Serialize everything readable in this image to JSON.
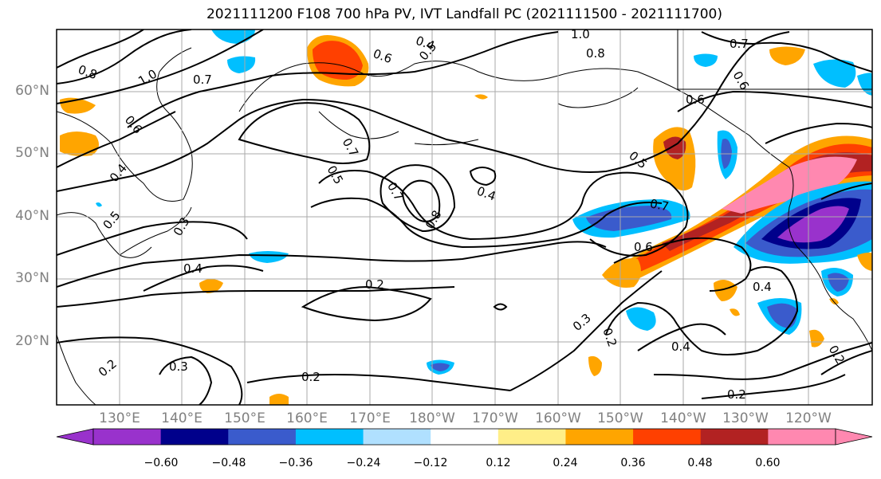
{
  "title": "2021111200 F108 700 hPa PV, IVT Landfall PC (2021111500 - 2021111700)",
  "map": {
    "lat_labels": [
      "60°N",
      "50°N",
      "40°N",
      "30°N",
      "20°N"
    ],
    "lon_labels": [
      "130°E",
      "140°E",
      "150°E",
      "160°E",
      "170°E",
      "180°W",
      "170°W",
      "160°W",
      "150°W",
      "140°W",
      "130°W",
      "120°W"
    ],
    "contour_labels": [
      {
        "text": "0.8"
      },
      {
        "text": "1.0"
      },
      {
        "text": "0.7"
      },
      {
        "text": "0.6"
      },
      {
        "text": "0.4"
      },
      {
        "text": "0.5"
      },
      {
        "text": "1.0"
      },
      {
        "text": "0.8"
      },
      {
        "text": "0.7"
      },
      {
        "text": "0.6"
      },
      {
        "text": "0.6"
      },
      {
        "text": "0.4"
      },
      {
        "text": "0.5"
      },
      {
        "text": "0.3"
      },
      {
        "text": "0.4"
      },
      {
        "text": "0.7"
      },
      {
        "text": "0.5"
      },
      {
        "text": "0.7"
      },
      {
        "text": "0.8"
      },
      {
        "text": "0.4"
      },
      {
        "text": "0.2"
      },
      {
        "text": "0.5"
      },
      {
        "text": "0.6"
      },
      {
        "text": "0.7"
      },
      {
        "text": "0.6"
      },
      {
        "text": "0.3"
      },
      {
        "text": "0.2"
      },
      {
        "text": "0.4"
      },
      {
        "text": "0.4"
      },
      {
        "text": "0.2"
      },
      {
        "text": "0.2"
      },
      {
        "text": "0.3"
      },
      {
        "text": "0.2"
      },
      {
        "text": "0.2"
      }
    ]
  },
  "colorbar": {
    "colors": [
      "#9932cc",
      "#00008b",
      "#3a5bcc",
      "#00bfff",
      "#b0e0ff",
      "#ffffff",
      "#ffee88",
      "#ffa500",
      "#ff4000",
      "#b22222",
      "#ff88b0"
    ],
    "under_color": "#9932cc",
    "over_color": "#ff88b0",
    "ticks": [
      "−0.60",
      "−0.48",
      "−0.36",
      "−0.24",
      "−0.12",
      "0.12",
      "0.24",
      "0.36",
      "0.48",
      "0.60"
    ]
  }
}
